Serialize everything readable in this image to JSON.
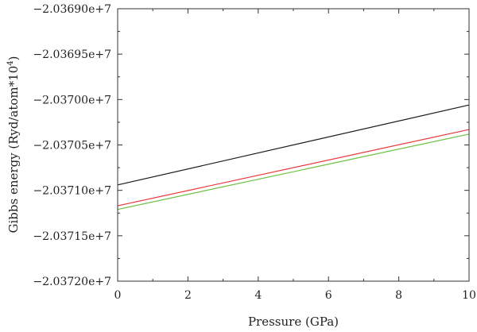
{
  "chart_data": {
    "type": "line",
    "title": "",
    "xlabel": "Pressure (GPa)",
    "ylabel_main": "Gibbs energy (Ryd/atom*10",
    "ylabel_sup": "4",
    "ylabel_close": ")",
    "xlim": [
      0,
      10
    ],
    "ylim": [
      -20372000,
      -20369000
    ],
    "x_ticks": [
      0,
      2,
      4,
      6,
      8,
      10
    ],
    "x_tick_labels": [
      "0",
      "2",
      "4",
      "6",
      "8",
      "10"
    ],
    "y_ticks": [
      -20369000,
      -20369500,
      -20370000,
      -20370500,
      -20371000,
      -20371500,
      -20372000
    ],
    "y_tick_labels": [
      "−2.03690e+7",
      "−2.03695e+7",
      "−2.03700e+7",
      "−2.03705e+7",
      "−2.03710e+7",
      "−2.03715e+7",
      "−2.03720e+7"
    ],
    "y_minor_ticks": [
      -20369250,
      -20369750,
      -20370250,
      -20370750,
      -20371250,
      -20371750
    ],
    "x_minor_ticks": [
      1,
      3,
      5,
      7,
      9
    ],
    "grid": false,
    "series": [
      {
        "color": "#1a1a1a",
        "x": [
          0,
          10
        ],
        "values": [
          -20370940,
          -20370060
        ]
      },
      {
        "color": "#e8383d",
        "x": [
          0,
          10
        ],
        "values": [
          -20371170,
          -20370330
        ]
      },
      {
        "color": "#6cbf3f",
        "x": [
          0,
          10
        ],
        "values": [
          -20371210,
          -20370380
        ]
      }
    ]
  }
}
